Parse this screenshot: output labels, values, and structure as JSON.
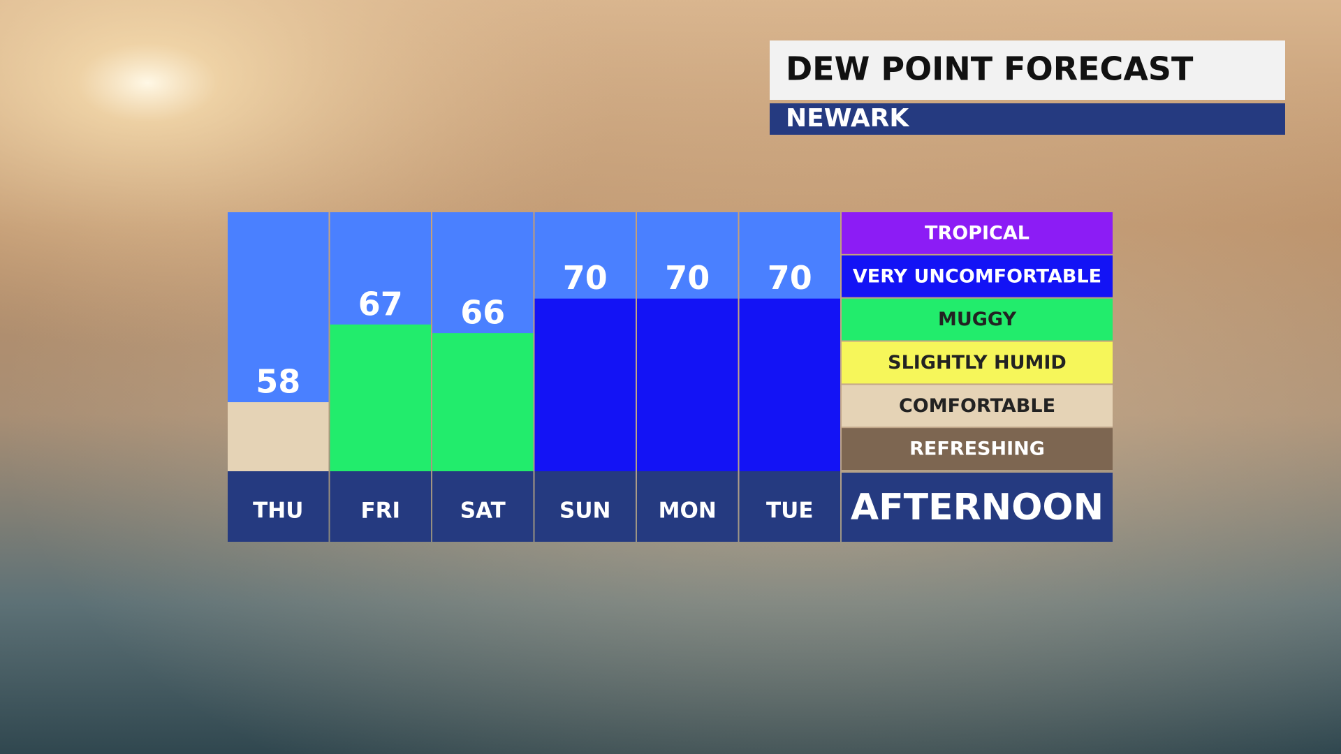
{
  "chart_data": {
    "type": "bar",
    "title": "DEW POINT FORECAST",
    "subtitle": "NEWARK",
    "categories": [
      "THU",
      "FRI",
      "SAT",
      "SUN",
      "MON",
      "TUE"
    ],
    "values": [
      58,
      67,
      66,
      70,
      70,
      70
    ],
    "colors": [
      "#e5d3b6",
      "#22ec6c",
      "#22ec6c",
      "#1313f5",
      "#1313f5",
      "#1313f5"
    ],
    "ylim": [
      50,
      80
    ],
    "legend": [
      {
        "name": "TROPICAL",
        "color": "#8c1cf5"
      },
      {
        "name": "VERY UNCOMFORTABLE",
        "color": "#1313f5"
      },
      {
        "name": "MUGGY",
        "color": "#22ec6c"
      },
      {
        "name": "SLIGHTLY HUMID",
        "color": "#f6f65a"
      },
      {
        "name": "COMFORTABLE",
        "color": "#e5d3b6"
      },
      {
        "name": "REFRESHING",
        "color": "#7d6651"
      }
    ],
    "period": "AFTERNOON"
  }
}
